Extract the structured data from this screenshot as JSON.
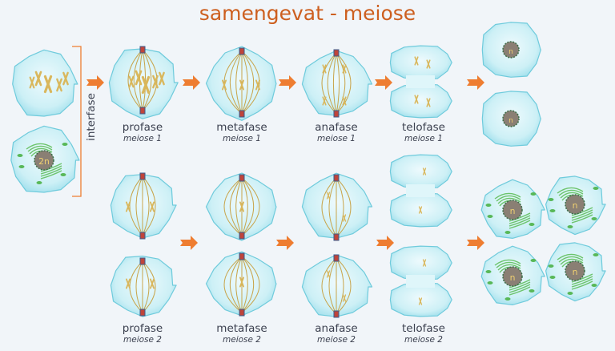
{
  "title": "samengevat - meiose",
  "interfase_label": "interfase",
  "meiose1": [
    {
      "phase": "profase",
      "sub": "meiose 1"
    },
    {
      "phase": "metafase",
      "sub": "meiose 1"
    },
    {
      "phase": "anafase",
      "sub": "meiose 1"
    },
    {
      "phase": "telofase",
      "sub": "meiose 1"
    }
  ],
  "meiose2": [
    {
      "phase": "profase",
      "sub": "meiose 2"
    },
    {
      "phase": "metafase",
      "sub": "meiose 2"
    },
    {
      "phase": "anafase",
      "sub": "meiose 2"
    },
    {
      "phase": "telofase",
      "sub": "meiose 2"
    }
  ],
  "nucleus_labels": {
    "diploid": "2n",
    "haploid": "n"
  },
  "colors": {
    "title": "#cd5f1f",
    "arrow": "#ee7d31",
    "cell": "#bfeaf3",
    "cell_edge": "#6fcbdc",
    "chromosome": "#d9b75c",
    "nucleus": "#8a7f74",
    "organelle": "#6cc46c"
  }
}
